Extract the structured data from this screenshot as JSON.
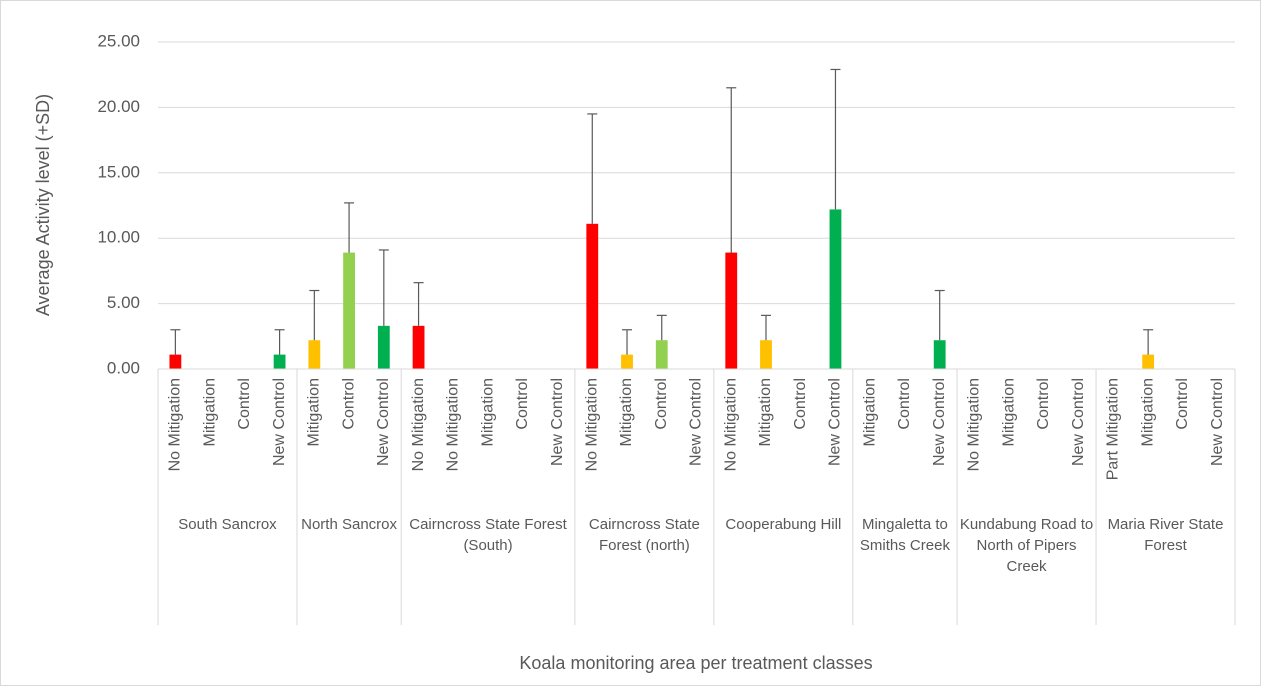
{
  "chart_data": {
    "type": "bar",
    "x_label": "Koala monitoring area per treatment classes",
    "y_label": "Average Activity level  (+SD)",
    "ylim": [
      0,
      25
    ],
    "yticks": [
      {
        "value": 0,
        "label": "0.00"
      },
      {
        "value": 5,
        "label": "5.00"
      },
      {
        "value": 10,
        "label": "10.00"
      },
      {
        "value": 15,
        "label": "15.00"
      },
      {
        "value": 20,
        "label": "20.00"
      },
      {
        "value": 25,
        "label": "25.00"
      }
    ],
    "grid": true,
    "colors": {
      "No Mitigation": "#ff0000",
      "Part Mitigation": "#ffc000",
      "Mitigation": "#ffc000",
      "Control": "#92d050",
      "New Control": "#00b050"
    },
    "groups": [
      {
        "label": "South Sancrox",
        "categories": [
          "No Mitigation",
          "Mitigation",
          "Control",
          "New Control"
        ],
        "values": [
          1.1,
          0,
          0,
          1.1
        ],
        "errors": [
          1.9,
          0,
          0,
          1.9
        ]
      },
      {
        "label": "North Sancrox",
        "categories": [
          "Mitigation",
          "Control",
          "New Control"
        ],
        "values": [
          2.2,
          8.9,
          3.3
        ],
        "errors": [
          3.8,
          3.8,
          5.8
        ]
      },
      {
        "label": "Cairncross State Forest (South)",
        "categories": [
          "No Mitigation",
          "No Mitigation",
          "Mitigation",
          "Control",
          "New Control"
        ],
        "values": [
          3.3,
          0,
          0,
          0,
          0
        ],
        "errors": [
          3.3,
          0,
          0,
          0,
          0
        ]
      },
      {
        "label": "Cairncross State Forest (north)",
        "categories": [
          "No Mitigation",
          "Mitigation",
          "Control",
          "New Control"
        ],
        "values": [
          11.1,
          1.1,
          2.2,
          0
        ],
        "errors": [
          8.4,
          1.9,
          1.9,
          0
        ]
      },
      {
        "label": "Cooperabung Hill",
        "categories": [
          "No Mitigation",
          "Mitigation",
          "Control",
          "New Control"
        ],
        "values": [
          8.9,
          2.2,
          0,
          12.2
        ],
        "errors": [
          12.6,
          1.9,
          0,
          10.7
        ]
      },
      {
        "label": "Mingaletta to Smiths Creek",
        "categories": [
          "Mitigation",
          "Control",
          "New Control"
        ],
        "values": [
          0,
          0,
          2.2
        ],
        "errors": [
          0,
          0,
          3.8
        ]
      },
      {
        "label": "Kundabung Road to North of Pipers Creek",
        "categories": [
          "No Mitigation",
          "Mitigation",
          "Control",
          "New Control"
        ],
        "values": [
          0,
          0,
          0,
          0
        ],
        "errors": [
          0,
          0,
          0,
          0
        ]
      },
      {
        "label": "Maria River State Forest",
        "categories": [
          "Part Mitigation",
          "Mitigation",
          "Control",
          "New Control"
        ],
        "values": [
          0,
          1.1,
          0,
          0
        ],
        "errors": [
          0,
          1.9,
          0,
          0
        ]
      }
    ]
  }
}
